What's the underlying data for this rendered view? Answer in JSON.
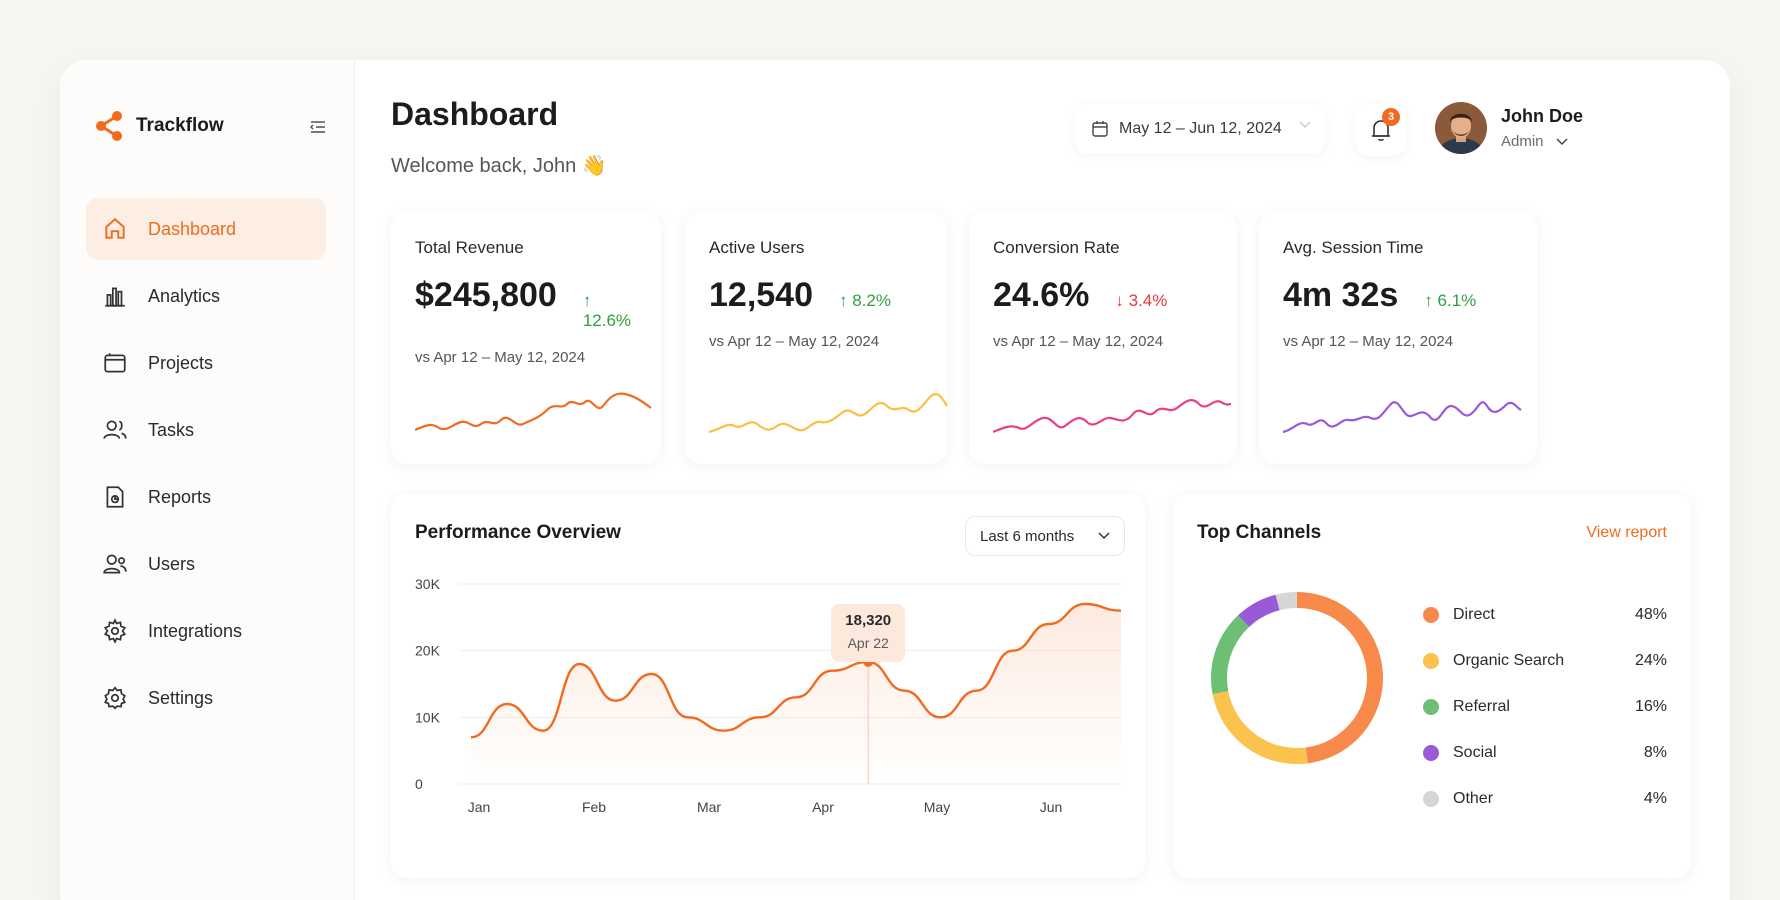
{
  "brand": {
    "name": "Trackflow"
  },
  "sidebar": {
    "items": [
      {
        "label": "Dashboard",
        "icon": "home-icon",
        "active": true
      },
      {
        "label": "Analytics",
        "icon": "bar-chart-icon",
        "active": false
      },
      {
        "label": "Projects",
        "icon": "folder-icon",
        "active": false
      },
      {
        "label": "Tasks",
        "icon": "people-icon",
        "active": false
      },
      {
        "label": "Reports",
        "icon": "report-icon",
        "active": false
      },
      {
        "label": "Users",
        "icon": "users-icon",
        "active": false
      },
      {
        "label": "Integrations",
        "icon": "cog-icon",
        "active": false
      },
      {
        "label": "Settings",
        "icon": "gear-icon",
        "active": false
      }
    ]
  },
  "header": {
    "title": "Dashboard",
    "welcome": "Welcome back, John 👋",
    "date_range": "May 12 – Jun 12, 2024",
    "notifications": "3",
    "user_name": "John Doe",
    "user_role": "Admin"
  },
  "kpis": [
    {
      "label": "Total Revenue",
      "value": "$245,800",
      "delta": "↑ 12.6%",
      "trend": "up",
      "sub": "vs Apr 12 – May 12, 2024",
      "color": "#f26a1e"
    },
    {
      "label": "Active Users",
      "value": "12,540",
      "delta": "↑ 8.2%",
      "trend": "up",
      "sub": "vs Apr 12 – May 12, 2024",
      "color": "#f7c244"
    },
    {
      "label": "Conversion Rate",
      "value": "24.6%",
      "delta": "↓ 3.4%",
      "trend": "down",
      "sub": "vs Apr 12 – May 12, 2024",
      "color": "#ea3f86"
    },
    {
      "label": "Avg. Session Time",
      "value": "4m 32s",
      "delta": "↑ 6.1%",
      "trend": "up",
      "sub": "vs Apr 12 – May 12, 2024",
      "color": "#9a5ad8"
    }
  ],
  "performance": {
    "title": "Performance Overview",
    "range": "Last 6 months",
    "tooltip_value": "18,320",
    "tooltip_date": "Apr 22"
  },
  "chart_data": {
    "type": "area",
    "x": [
      "Jan",
      "Jan",
      "Jan",
      "Feb",
      "Feb",
      "Feb",
      "Feb",
      "Mar",
      "Mar",
      "Mar",
      "Apr",
      "Apr",
      "Apr",
      "May",
      "May",
      "May",
      "Jun",
      "Jun",
      "Jun"
    ],
    "categories": [
      "Jan",
      "Feb",
      "Mar",
      "Apr",
      "May",
      "Jun"
    ],
    "values": [
      7000,
      12000,
      8000,
      18000,
      12500,
      16500,
      10000,
      8000,
      10000,
      13000,
      17000,
      18320,
      14000,
      10000,
      14000,
      20000,
      24000,
      27000,
      26000
    ],
    "ylabel_ticks": [
      "0",
      "10K",
      "20K",
      "30K"
    ],
    "ylim": [
      0,
      30000
    ],
    "highlight": {
      "x": "Apr 22",
      "y": 18320
    },
    "color": "#f26a1e"
  },
  "channels": {
    "title": "Top Channels",
    "link": "View report",
    "items": [
      {
        "name": "Direct",
        "pct": "48%",
        "value": 48,
        "color": "#f7894a"
      },
      {
        "name": "Organic Search",
        "pct": "24%",
        "value": 24,
        "color": "#fbc24e"
      },
      {
        "name": "Referral",
        "pct": "16%",
        "value": 16,
        "color": "#6cbf73"
      },
      {
        "name": "Social",
        "pct": "8%",
        "value": 8,
        "color": "#9a5ad8"
      },
      {
        "name": "Other",
        "pct": "4%",
        "value": 4,
        "color": "#d6d6d6"
      }
    ]
  }
}
